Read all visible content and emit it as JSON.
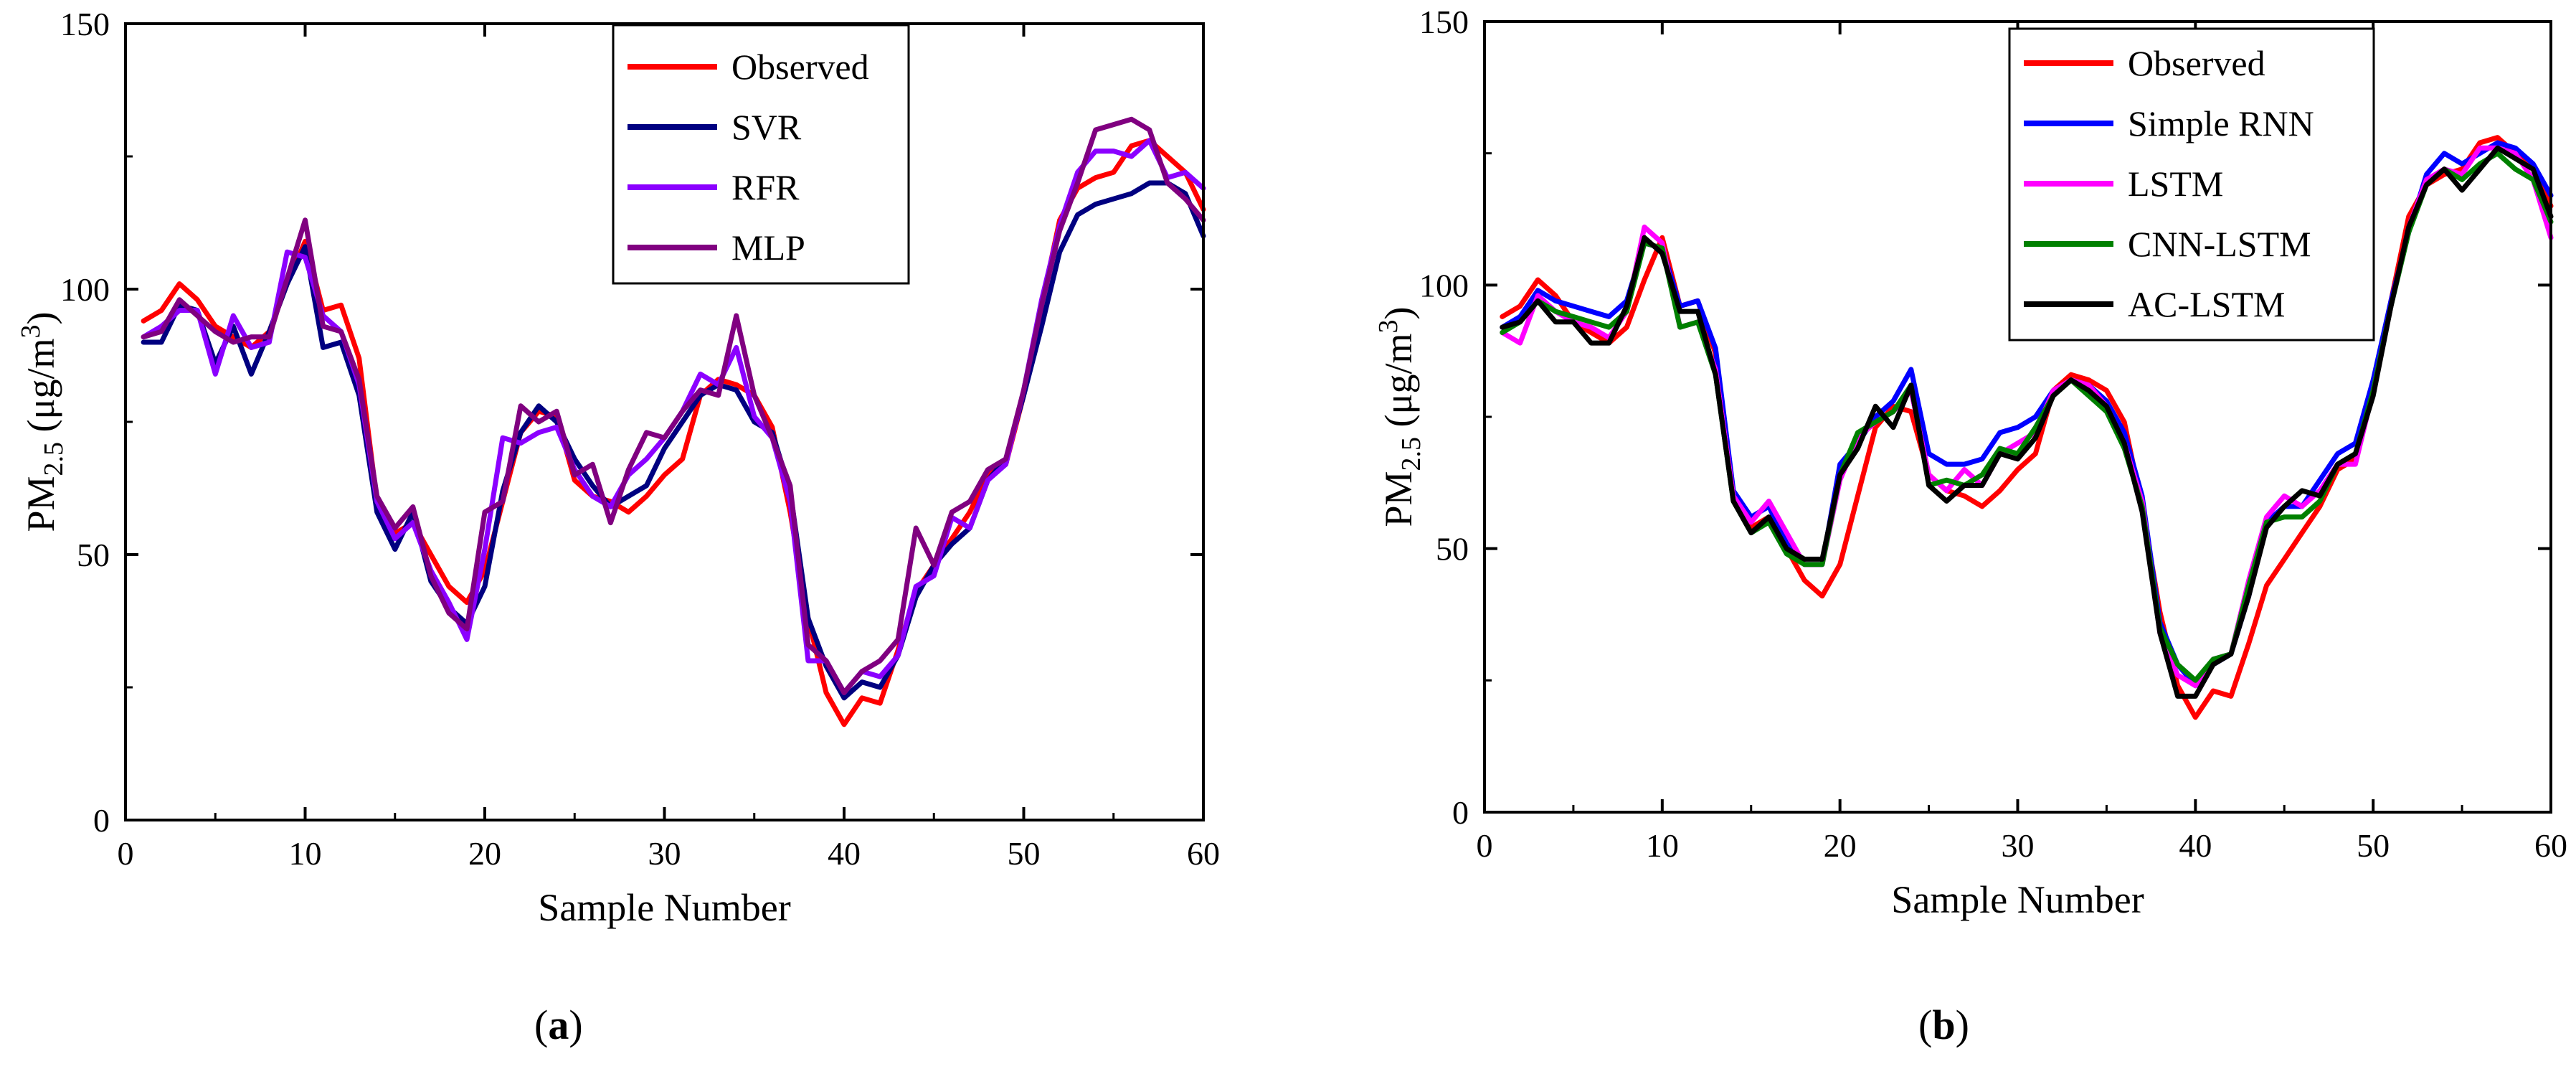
{
  "panels": {
    "a": {
      "label_open": "(",
      "label_letter": "a",
      "label_close": ")"
    },
    "b": {
      "label_open": "(",
      "label_letter": "b",
      "label_close": ")"
    }
  },
  "chart_data": [
    {
      "id": "a",
      "type": "line",
      "title": "",
      "xlabel": "Sample Number",
      "ylabel_main": "PM",
      "ylabel_sub": "2.5",
      "ylabel_unit_open": " (μg/m",
      "ylabel_sup": "3",
      "ylabel_unit_close": ")",
      "xlim": [
        0,
        60
      ],
      "ylim": [
        0,
        150
      ],
      "xticks": [
        0,
        10,
        20,
        30,
        40,
        50,
        60
      ],
      "yticks": [
        0,
        50,
        100,
        150
      ],
      "grid": false,
      "legend_position": "top-center",
      "x": [
        1,
        2,
        3,
        4,
        5,
        6,
        7,
        8,
        9,
        10,
        11,
        12,
        13,
        14,
        15,
        16,
        17,
        18,
        19,
        20,
        21,
        22,
        23,
        24,
        25,
        26,
        27,
        28,
        29,
        30,
        31,
        32,
        33,
        34,
        35,
        36,
        37,
        38,
        39,
        40,
        41,
        42,
        43,
        44,
        45,
        46,
        47,
        48,
        49,
        50,
        51,
        52,
        53,
        54,
        55,
        56,
        57,
        58,
        59,
        60
      ],
      "series": [
        {
          "name": "Observed",
          "color": "#ff0000",
          "values": [
            94,
            96,
            101,
            98,
            93,
            91,
            89,
            92,
            101,
            109,
            96,
            97,
            87,
            60,
            54,
            56,
            50,
            44,
            41,
            47,
            60,
            73,
            77,
            76,
            64,
            61,
            60,
            58,
            61,
            65,
            68,
            80,
            83,
            82,
            80,
            74,
            58,
            38,
            24,
            18,
            23,
            22,
            32,
            43,
            48,
            53,
            58,
            65,
            67,
            80,
            97,
            113,
            119,
            121,
            122,
            127,
            128,
            125,
            122,
            115
          ]
        },
        {
          "name": "SVR",
          "color": "#000080",
          "values": [
            90,
            90,
            97,
            96,
            86,
            93,
            84,
            92,
            101,
            108,
            89,
            90,
            80,
            58,
            51,
            58,
            45,
            40,
            37,
            44,
            62,
            73,
            78,
            75,
            68,
            63,
            59,
            61,
            63,
            70,
            75,
            80,
            82,
            81,
            75,
            73,
            62,
            38,
            29,
            23,
            26,
            25,
            31,
            42,
            48,
            52,
            55,
            64,
            68,
            80,
            93,
            107,
            114,
            116,
            117,
            118,
            120,
            120,
            118,
            110
          ]
        },
        {
          "name": "RFR",
          "color": "#8b00ff",
          "values": [
            91,
            93,
            96,
            96,
            84,
            95,
            89,
            90,
            107,
            106,
            95,
            92,
            82,
            60,
            53,
            56,
            47,
            41,
            34,
            51,
            72,
            71,
            73,
            74,
            66,
            61,
            59,
            65,
            68,
            72,
            77,
            84,
            82,
            89,
            76,
            72,
            60,
            30,
            30,
            24,
            28,
            27,
            31,
            44,
            46,
            57,
            55,
            64,
            67,
            81,
            98,
            112,
            122,
            126,
            126,
            125,
            128,
            121,
            122,
            119
          ]
        },
        {
          "name": "MLP",
          "color": "#800080",
          "values": [
            91,
            92,
            98,
            95,
            92,
            90,
            91,
            91,
            102,
            113,
            93,
            92,
            83,
            61,
            55,
            59,
            46,
            39,
            36,
            58,
            60,
            78,
            75,
            77,
            65,
            67,
            56,
            66,
            73,
            72,
            77,
            81,
            80,
            95,
            80,
            72,
            63,
            33,
            30,
            24,
            28,
            30,
            34,
            55,
            48,
            58,
            60,
            66,
            68,
            81,
            97,
            111,
            120,
            130,
            131,
            132,
            130,
            120,
            117,
            113
          ]
        }
      ]
    },
    {
      "id": "b",
      "type": "line",
      "title": "",
      "xlabel": "Sample Number",
      "ylabel_main": "PM",
      "ylabel_sub": "2.5",
      "ylabel_unit_open": " (μg/m",
      "ylabel_sup": "3",
      "ylabel_unit_close": ")",
      "xlim": [
        0,
        60
      ],
      "ylim": [
        0,
        150
      ],
      "xticks": [
        0,
        10,
        20,
        30,
        40,
        50,
        60
      ],
      "yticks": [
        0,
        50,
        100,
        150
      ],
      "grid": false,
      "legend_position": "top-left",
      "x": [
        1,
        2,
        3,
        4,
        5,
        6,
        7,
        8,
        9,
        10,
        11,
        12,
        13,
        14,
        15,
        16,
        17,
        18,
        19,
        20,
        21,
        22,
        23,
        24,
        25,
        26,
        27,
        28,
        29,
        30,
        31,
        32,
        33,
        34,
        35,
        36,
        37,
        38,
        39,
        40,
        41,
        42,
        43,
        44,
        45,
        46,
        47,
        48,
        49,
        50,
        51,
        52,
        53,
        54,
        55,
        56,
        57,
        58,
        59,
        60
      ],
      "series": [
        {
          "name": "Observed",
          "color": "#ff0000",
          "values": [
            94,
            96,
            101,
            98,
            93,
            91,
            89,
            92,
            101,
            109,
            96,
            97,
            87,
            60,
            54,
            56,
            50,
            44,
            41,
            47,
            60,
            73,
            77,
            76,
            64,
            61,
            60,
            58,
            61,
            65,
            68,
            80,
            83,
            82,
            80,
            74,
            58,
            38,
            24,
            18,
            23,
            22,
            32,
            43,
            48,
            53,
            58,
            65,
            67,
            80,
            97,
            113,
            119,
            121,
            122,
            127,
            128,
            125,
            122,
            115
          ]
        },
        {
          "name": "Simple RNN",
          "color": "#0000ff",
          "values": [
            92,
            94,
            99,
            97,
            96,
            95,
            94,
            97,
            108,
            107,
            96,
            97,
            88,
            61,
            56,
            58,
            51,
            47,
            47,
            66,
            70,
            75,
            78,
            84,
            68,
            66,
            66,
            67,
            72,
            73,
            75,
            80,
            82,
            81,
            78,
            72,
            60,
            36,
            28,
            24,
            28,
            30,
            41,
            55,
            58,
            58,
            63,
            68,
            70,
            82,
            97,
            110,
            121,
            125,
            123,
            125,
            127,
            126,
            123,
            117
          ]
        },
        {
          "name": "LSTM",
          "color": "#ff00ff",
          "values": [
            91,
            89,
            98,
            95,
            93,
            92,
            90,
            95,
            111,
            108,
            92,
            93,
            84,
            60,
            55,
            59,
            53,
            47,
            47,
            63,
            71,
            74,
            76,
            80,
            64,
            61,
            65,
            62,
            68,
            70,
            72,
            80,
            82,
            81,
            77,
            70,
            59,
            34,
            26,
            24,
            29,
            30,
            44,
            56,
            60,
            58,
            61,
            66,
            66,
            80,
            96,
            111,
            120,
            122,
            121,
            126,
            126,
            125,
            120,
            109
          ]
        },
        {
          "name": "CNN-LSTM",
          "color": "#008000",
          "values": [
            91,
            93,
            97,
            95,
            94,
            93,
            92,
            95,
            108,
            107,
            92,
            93,
            83,
            59,
            53,
            55,
            49,
            47,
            47,
            64,
            72,
            74,
            76,
            81,
            62,
            63,
            62,
            64,
            69,
            68,
            73,
            79,
            82,
            79,
            76,
            69,
            58,
            35,
            28,
            25,
            29,
            30,
            43,
            55,
            56,
            56,
            59,
            66,
            68,
            80,
            96,
            110,
            119,
            122,
            120,
            123,
            125,
            122,
            120,
            112
          ]
        },
        {
          "name": "AC-LSTM",
          "color": "#000000",
          "values": [
            92,
            93,
            97,
            93,
            93,
            89,
            89,
            96,
            109,
            106,
            95,
            95,
            83,
            59,
            53,
            56,
            50,
            48,
            48,
            64,
            69,
            77,
            73,
            81,
            62,
            59,
            62,
            62,
            68,
            67,
            71,
            79,
            82,
            80,
            77,
            70,
            57,
            34,
            22,
            22,
            28,
            30,
            41,
            54,
            58,
            61,
            60,
            66,
            68,
            79,
            96,
            111,
            119,
            122,
            118,
            122,
            126,
            124,
            122,
            113
          ]
        }
      ]
    }
  ]
}
